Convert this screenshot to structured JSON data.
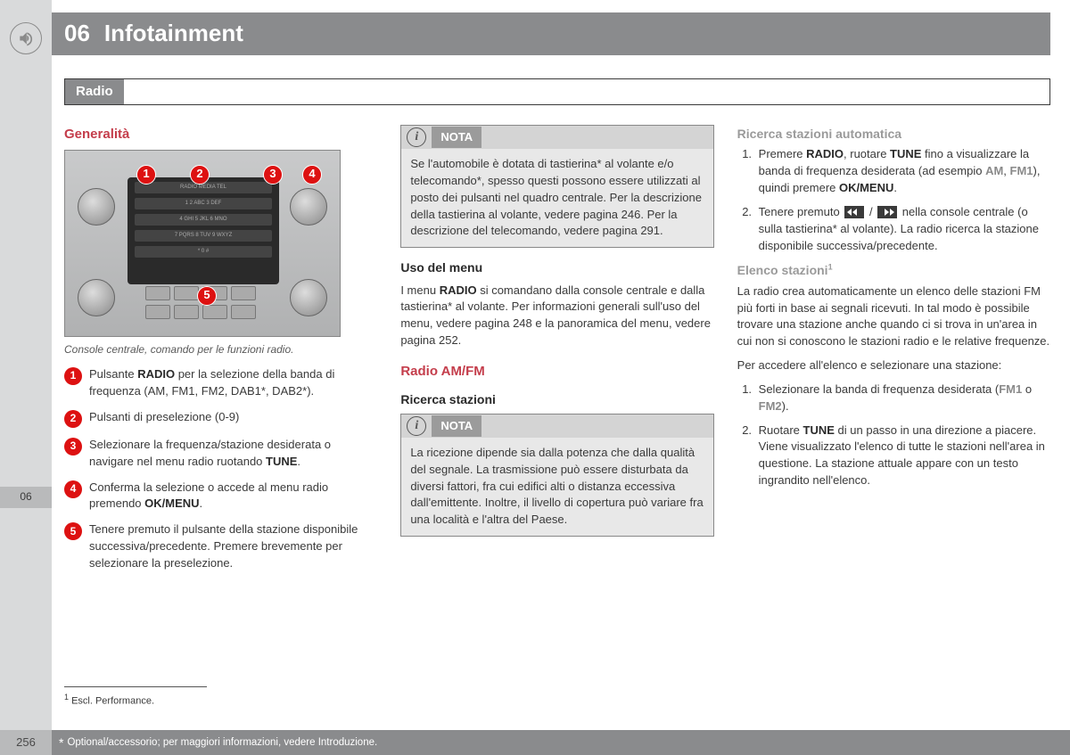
{
  "page": {
    "number": "256",
    "side_tab": "06"
  },
  "header": {
    "chapter_num": "06",
    "chapter_title": "Infotainment",
    "section": "Radio"
  },
  "col1": {
    "h1": "Generalità",
    "caption": "Console centrale, comando per le funzioni radio.",
    "callouts": [
      "1",
      "2",
      "3",
      "4",
      "5"
    ],
    "items": [
      {
        "n": "1",
        "html": "Pulsante <b>RADIO</b> per la selezione della banda di frequenza (AM, FM1, FM2, DAB1*, DAB2*)."
      },
      {
        "n": "2",
        "html": "Pulsanti di preselezione (0-9)"
      },
      {
        "n": "3",
        "html": "Selezionare la frequenza/stazione desiderata o navigare nel menu radio ruotando <b>TUNE</b>."
      },
      {
        "n": "4",
        "html": "Conferma la selezione o accede al menu radio premendo <b>OK/MENU</b>."
      },
      {
        "n": "5",
        "html": "Tenere premuto il pulsante della stazione disponibile successiva/precedente. Premere brevemente per selezionare la preselezione."
      }
    ]
  },
  "col2": {
    "note1_title": "NOTA",
    "note1_body": "Se l'automobile è dotata di tastierina* al volante e/o telecomando*, spesso questi possono essere utilizzati al posto dei pulsanti nel quadro centrale. Per la descrizione della tastierina al volante, vedere pagina 246. Per la descrizione del telecomando, vedere pagina 291.",
    "h_uso": "Uso del menu",
    "uso_body_html": "I menu <b>RADIO</b> si comandano dalla console centrale e dalla tastierina* al volante. Per informazioni generali sull'uso del menu, vedere pagina 248 e la panoramica del menu, vedere pagina 252.",
    "h_amfm": "Radio AM/FM",
    "h_ricerca": "Ricerca stazioni",
    "note2_title": "NOTA",
    "note2_body": "La ricezione dipende sia dalla potenza che dalla qualità del segnale. La trasmissione può essere disturbata da diversi fattori, fra cui edifici alti o distanza eccessiva dall'emittente. Inoltre, il livello di copertura può variare fra una località e l'altra del Paese."
  },
  "col3": {
    "h_auto": "Ricerca stazioni automatica",
    "auto_li1_html": "Premere <b>RADIO</b>, ruotare <b>TUNE</b> fino a visualizzare la banda di frequenza desiderata (ad esempio <span class='grey-b'>AM</span>, <span class='grey-b'>FM1</span>), quindi premere <b>OK/MENU</b>.",
    "auto_li2_pre": "Tenere premuto ",
    "auto_li2_mid": " / ",
    "auto_li2_post": " nella console centrale (o sulla tastierina* al volante). La radio ricerca la stazione disponibile successiva/precedente.",
    "h_elenco": "Elenco stazioni",
    "elenco_sup": "1",
    "elenco_p": "La radio crea automaticamente un elenco delle stazioni FM più forti in base ai segnali ricevuti. In tal modo è possibile trovare una stazione anche quando ci si trova in un'area in cui non si conoscono le stazioni radio e le relative frequenze.",
    "elenco_p2": "Per accedere all'elenco e selezionare una stazione:",
    "el_li1_html": "Selezionare la banda di frequenza desiderata (<span class='grey-b'>FM1</span> o <span class='grey-b'>FM2</span>).",
    "el_li2_html": "Ruotare <b>TUNE</b> di un passo in una direzione a piacere. Viene visualizzato l'elenco di tutte le stazioni nell'area in questione. La stazione attuale appare con un testo ingrandito nell'elenco."
  },
  "footnote": {
    "marker": "1",
    "text": "Escl. Performance."
  },
  "footer": {
    "star": "*",
    "text": "Optional/accessorio; per maggiori informazioni, vedere Introduzione."
  },
  "colors": {
    "sidebar": "#d9dadb",
    "sidebar_tab": "#b9babb",
    "topbar": "#8a8b8d",
    "red": "#c43d4b",
    "callout_red": "#d11",
    "note_bg": "#e8e8e8"
  }
}
